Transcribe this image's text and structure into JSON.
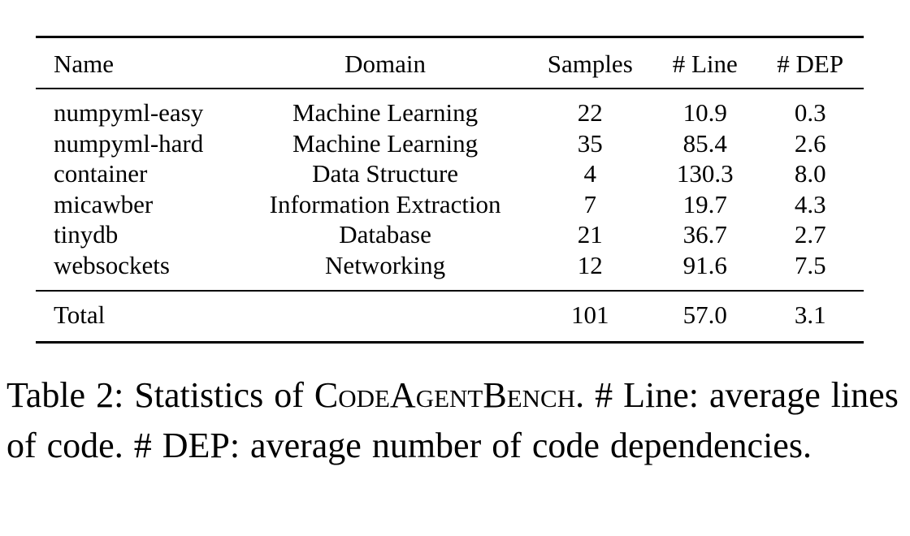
{
  "table": {
    "headers": [
      "Name",
      "Domain",
      "Samples",
      "# Line",
      "# DEP"
    ],
    "rows": [
      [
        "numpyml-easy",
        "Machine Learning",
        "22",
        "10.9",
        "0.3"
      ],
      [
        "numpyml-hard",
        "Machine Learning",
        "35",
        "85.4",
        "2.6"
      ],
      [
        "container",
        "Data Structure",
        "4",
        "130.3",
        "8.0"
      ],
      [
        "micawber",
        "Information Extraction",
        "7",
        "19.7",
        "4.3"
      ],
      [
        "tinydb",
        "Database",
        "21",
        "36.7",
        "2.7"
      ],
      [
        "websockets",
        "Networking",
        "12",
        "91.6",
        "7.5"
      ]
    ],
    "total": [
      "Total",
      "",
      "101",
      "57.0",
      "3.1"
    ]
  },
  "caption": {
    "label": "Table 2:",
    "text_before": "Statistics of",
    "benchmark_name": "CodeAgentBench",
    "text_after": ". # Line: average lines of code. # DEP: average number of code dependencies."
  }
}
